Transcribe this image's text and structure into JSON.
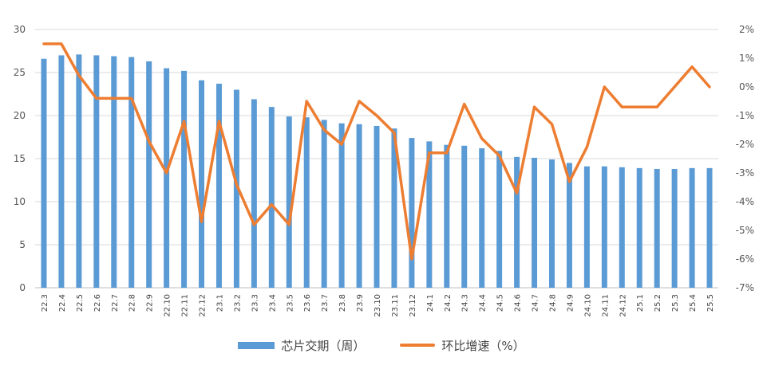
{
  "chart_data": {
    "type": "bar+line",
    "categories": [
      "22.3",
      "22.4",
      "22.5",
      "22.6",
      "22.7",
      "22.8",
      "22.9",
      "22.10",
      "22.11",
      "22.12",
      "23.1",
      "23.2",
      "23.3",
      "23.4",
      "23.5",
      "23.6",
      "23.7",
      "23.8",
      "23.9",
      "23.10",
      "23.11",
      "23.12",
      "24.1",
      "24.2",
      "24.3",
      "24.4",
      "24.5",
      "24.6",
      "24.7",
      "24.8",
      "24.9",
      "24.10",
      "24.11",
      "24.12",
      "25.1",
      "25.2",
      "25.3",
      "25.4",
      "25.5"
    ],
    "series": [
      {
        "name": "芯片交期（周）",
        "type": "bar",
        "axis": "left",
        "values": [
          26.6,
          27.0,
          27.1,
          27.0,
          26.9,
          26.8,
          26.3,
          25.5,
          25.2,
          24.1,
          23.7,
          23.0,
          21.9,
          21.0,
          19.9,
          19.8,
          19.5,
          19.1,
          19.0,
          18.8,
          18.5,
          17.4,
          17.0,
          16.6,
          16.5,
          16.2,
          15.9,
          15.2,
          15.1,
          14.9,
          14.5,
          14.1,
          14.1,
          14.0,
          13.9,
          13.8,
          13.8,
          13.9,
          13.9
        ]
      },
      {
        "name": "环比增速（%）",
        "type": "line",
        "axis": "right",
        "values": [
          1.5,
          1.5,
          0.4,
          -0.4,
          -0.4,
          -0.4,
          -1.9,
          -3.0,
          -1.2,
          -4.7,
          -1.2,
          -3.4,
          -4.8,
          -4.1,
          -4.8,
          -0.5,
          -1.5,
          -2.0,
          -0.5,
          -1.0,
          -1.6,
          -6.0,
          -2.3,
          -2.3,
          -0.6,
          -1.8,
          -2.4,
          -3.7,
          -0.7,
          -1.3,
          -3.3,
          -2.1,
          0.0,
          -0.7,
          -0.7,
          -0.7,
          0.0,
          0.7,
          0.0
        ]
      }
    ],
    "y_left": {
      "min": 0,
      "max": 30,
      "ticks": [
        "0",
        "5",
        "10",
        "15",
        "20",
        "25",
        "30"
      ]
    },
    "y_right": {
      "min": -7,
      "max": 2,
      "ticks": [
        "-7%",
        "-6%",
        "-5%",
        "-4%",
        "-3%",
        "-2%",
        "-1%",
        "0%",
        "1%",
        "2%"
      ]
    },
    "grid": true,
    "legend_position": "bottom",
    "colors": {
      "bar": "#5b9bd5",
      "line": "#ed7d31",
      "grid": "#d9d9d9"
    }
  },
  "legend": {
    "bar_label": "芯片交期（周）",
    "line_label": "环比增速（%）"
  }
}
